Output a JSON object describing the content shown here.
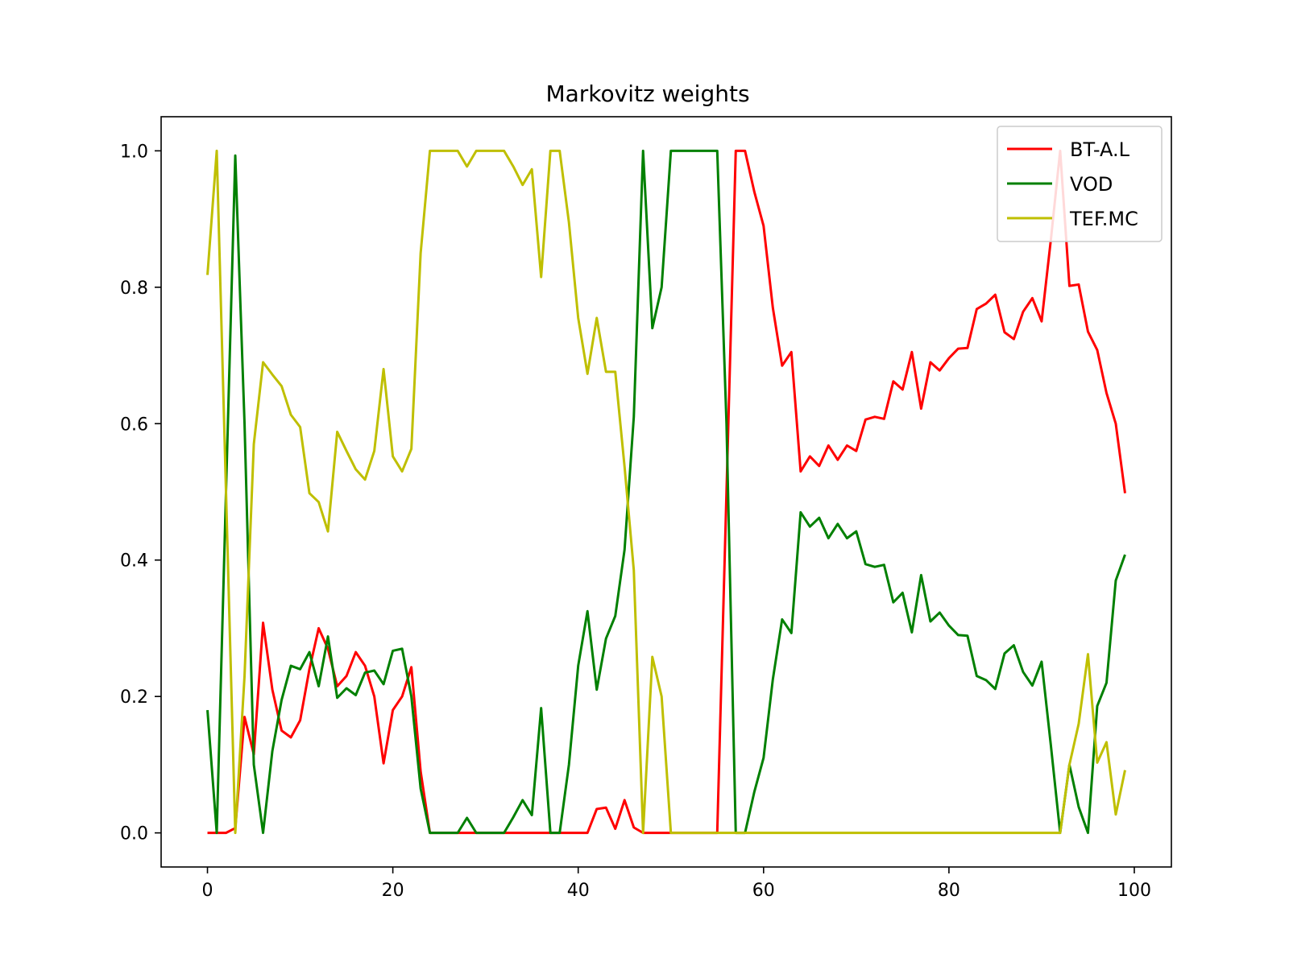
{
  "chart_data": {
    "type": "line",
    "title": "Markovitz weights",
    "xlabel": "",
    "ylabel": "",
    "xlim": [
      -5,
      104
    ],
    "ylim": [
      -0.05,
      1.05
    ],
    "xticks": [
      0,
      20,
      40,
      60,
      80,
      100
    ],
    "yticks": [
      0.0,
      0.2,
      0.4,
      0.6,
      0.8,
      1.0
    ],
    "xtick_labels": [
      "0",
      "20",
      "40",
      "60",
      "80",
      "100"
    ],
    "ytick_labels": [
      "0.0",
      "0.2",
      "0.4",
      "0.6",
      "0.8",
      "1.0"
    ],
    "grid": false,
    "legend_position": "upper right",
    "series": [
      {
        "name": "BT-A.L",
        "color": "#ff0000",
        "x": [
          0,
          1,
          2,
          3,
          4,
          5,
          6,
          7,
          8,
          9,
          10,
          11,
          12,
          13,
          14,
          15,
          16,
          17,
          18,
          19,
          20,
          21,
          22,
          23,
          24,
          25,
          26,
          27,
          28,
          29,
          30,
          31,
          32,
          33,
          34,
          35,
          36,
          37,
          38,
          39,
          40,
          41,
          42,
          43,
          44,
          45,
          46,
          47,
          48,
          49,
          50,
          51,
          52,
          53,
          54,
          55,
          56,
          57,
          58,
          59,
          60,
          61,
          62,
          63,
          64,
          65,
          66,
          67,
          68,
          69,
          70,
          71,
          72,
          73,
          74,
          75,
          76,
          77,
          78,
          79,
          80,
          81,
          82,
          83,
          84,
          85,
          86,
          87,
          88,
          89,
          90,
          91,
          92,
          93,
          94,
          95,
          96,
          97,
          98,
          99
        ],
        "values": [
          0,
          0,
          0,
          0.007,
          0.17,
          0.115,
          0.308,
          0.21,
          0.15,
          0.14,
          0.165,
          0.24,
          0.3,
          0.27,
          0.215,
          0.23,
          0.265,
          0.245,
          0.2,
          0.102,
          0.18,
          0.2,
          0.243,
          0.09,
          0,
          0,
          0,
          0,
          0,
          0,
          0,
          0,
          0,
          0,
          0,
          0,
          0,
          0,
          0,
          0,
          0,
          0,
          0.035,
          0.037,
          0.006,
          0.048,
          0.008,
          0,
          0,
          0,
          0,
          0,
          0,
          0,
          0,
          0,
          0.5,
          1,
          1,
          0.94,
          0.89,
          0.77,
          0.685,
          0.705,
          0.53,
          0.552,
          0.538,
          0.568,
          0.547,
          0.568,
          0.56,
          0.606,
          0.61,
          0.607,
          0.662,
          0.65,
          0.705,
          0.622,
          0.69,
          0.678,
          0.696,
          0.71,
          0.711,
          0.768,
          0.776,
          0.789,
          0.734,
          0.724,
          0.764,
          0.784,
          0.75,
          0.87,
          1,
          0.802,
          0.804,
          0.735,
          0.708,
          0.645,
          0.6,
          0.498
        ]
      },
      {
        "name": "VOD",
        "color": "#008000",
        "x": [
          0,
          1,
          2,
          3,
          4,
          5,
          6,
          7,
          8,
          9,
          10,
          11,
          12,
          13,
          14,
          15,
          16,
          17,
          18,
          19,
          20,
          21,
          22,
          23,
          24,
          25,
          26,
          27,
          28,
          29,
          30,
          31,
          32,
          33,
          34,
          35,
          36,
          37,
          38,
          39,
          40,
          41,
          42,
          43,
          44,
          45,
          46,
          47,
          48,
          49,
          50,
          51,
          52,
          53,
          54,
          55,
          56,
          57,
          58,
          59,
          60,
          61,
          62,
          63,
          64,
          65,
          66,
          67,
          68,
          69,
          70,
          71,
          72,
          73,
          74,
          75,
          76,
          77,
          78,
          79,
          80,
          81,
          82,
          83,
          84,
          85,
          86,
          87,
          88,
          89,
          90,
          91,
          92,
          93,
          94,
          95,
          96,
          97,
          98,
          99
        ],
        "values": [
          0.18,
          0,
          0.5,
          0.993,
          0.6,
          0.1,
          0,
          0.12,
          0.195,
          0.245,
          0.24,
          0.265,
          0.215,
          0.288,
          0.198,
          0.212,
          0.202,
          0.235,
          0.238,
          0.218,
          0.267,
          0.27,
          0.2,
          0.065,
          0,
          0,
          0,
          0,
          0.022,
          0,
          0,
          0,
          0,
          0.023,
          0.048,
          0.026,
          0.183,
          0,
          0,
          0.1,
          0.245,
          0.325,
          0.21,
          0.285,
          0.318,
          0.415,
          0.61,
          1,
          0.74,
          0.8,
          1,
          1,
          1,
          1,
          1,
          1,
          0.6,
          0,
          0,
          0.06,
          0.11,
          0.225,
          0.313,
          0.293,
          0.47,
          0.449,
          0.462,
          0.432,
          0.453,
          0.432,
          0.442,
          0.394,
          0.39,
          0.393,
          0.338,
          0.352,
          0.294,
          0.378,
          0.31,
          0.323,
          0.304,
          0.29,
          0.289,
          0.23,
          0.224,
          0.211,
          0.263,
          0.275,
          0.236,
          0.216,
          0.251,
          0.128,
          0,
          0.1,
          0.038,
          0,
          0.186,
          0.22,
          0.37,
          0.408
        ]
      },
      {
        "name": "TEF.MC",
        "color": "#bfbf00",
        "x": [
          0,
          1,
          2,
          3,
          4,
          5,
          6,
          7,
          8,
          9,
          10,
          11,
          12,
          13,
          14,
          15,
          16,
          17,
          18,
          19,
          20,
          21,
          22,
          23,
          24,
          25,
          26,
          27,
          28,
          29,
          30,
          31,
          32,
          33,
          34,
          35,
          36,
          37,
          38,
          39,
          40,
          41,
          42,
          43,
          44,
          45,
          46,
          47,
          48,
          49,
          50,
          51,
          52,
          53,
          54,
          55,
          56,
          57,
          58,
          59,
          60,
          61,
          62,
          63,
          64,
          65,
          66,
          67,
          68,
          69,
          70,
          71,
          72,
          73,
          74,
          75,
          76,
          77,
          78,
          79,
          80,
          81,
          82,
          83,
          84,
          85,
          86,
          87,
          88,
          89,
          90,
          91,
          92,
          93,
          94,
          95,
          96,
          97,
          98,
          99
        ],
        "values": [
          0.818,
          1,
          0.5,
          0,
          0.23,
          0.57,
          0.69,
          0.672,
          0.655,
          0.613,
          0.595,
          0.498,
          0.485,
          0.442,
          0.588,
          0.56,
          0.533,
          0.518,
          0.56,
          0.68,
          0.552,
          0.53,
          0.563,
          0.85,
          1,
          1,
          1,
          1,
          0.977,
          1,
          1,
          1,
          1,
          0.977,
          0.95,
          0.973,
          0.815,
          1,
          1,
          0.895,
          0.755,
          0.673,
          0.755,
          0.676,
          0.676,
          0.537,
          0.385,
          0,
          0.258,
          0.2,
          0,
          0,
          0,
          0,
          0,
          0,
          0,
          0,
          0,
          0,
          0,
          0,
          0,
          0,
          0,
          0,
          0,
          0,
          0,
          0,
          0,
          0,
          0,
          0,
          0,
          0,
          0,
          0,
          0,
          0,
          0,
          0,
          0,
          0,
          0,
          0,
          0,
          0,
          0,
          0,
          0,
          0,
          0,
          0.1,
          0.16,
          0.262,
          0.103,
          0.133,
          0.027,
          0.092
        ]
      }
    ]
  }
}
